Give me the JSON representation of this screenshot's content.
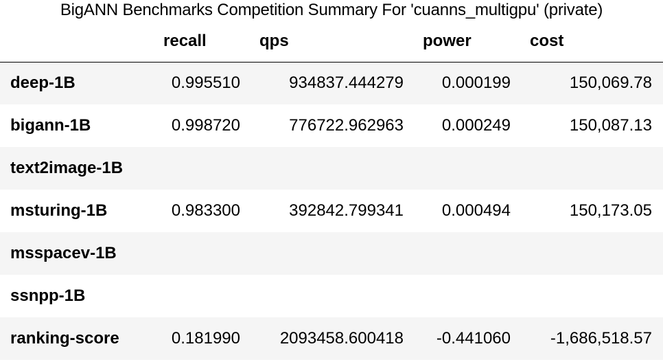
{
  "caption": "BigANN Benchmarks Competition Summary For 'cuanns_multigpu' (private)",
  "table": {
    "corner": "",
    "columns": [
      "recall",
      "qps",
      "power",
      "cost"
    ],
    "rows": [
      {
        "label": "deep-1B",
        "recall": "0.995510",
        "qps": "934837.444279",
        "power": "0.000199",
        "cost": "150,069.78"
      },
      {
        "label": "bigann-1B",
        "recall": "0.998720",
        "qps": "776722.962963",
        "power": "0.000249",
        "cost": "150,087.13"
      },
      {
        "label": "text2image-1B",
        "recall": "",
        "qps": "",
        "power": "",
        "cost": ""
      },
      {
        "label": "msturing-1B",
        "recall": "0.983300",
        "qps": "392842.799341",
        "power": "0.000494",
        "cost": "150,173.05"
      },
      {
        "label": "msspacev-1B",
        "recall": "",
        "qps": "",
        "power": "",
        "cost": ""
      },
      {
        "label": "ssnpp-1B",
        "recall": "",
        "qps": "",
        "power": "",
        "cost": ""
      },
      {
        "label": "ranking-score",
        "recall": "0.181990",
        "qps": "2093458.600418",
        "power": "-0.441060",
        "cost": "-1,686,518.57"
      }
    ]
  },
  "colors": {
    "text": "#000000",
    "stripe": "#f5f5f5",
    "background": "#ffffff",
    "header_rule": "#000000"
  }
}
